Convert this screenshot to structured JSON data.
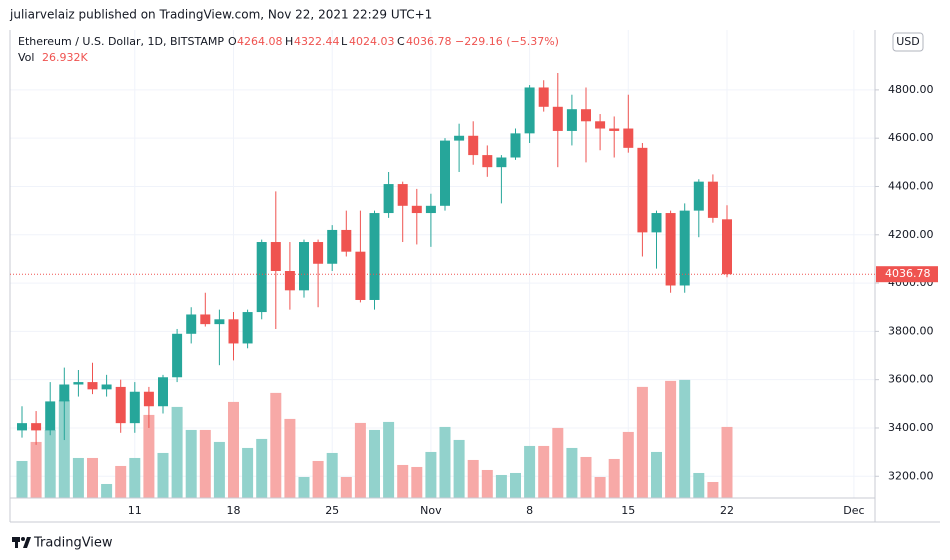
{
  "chart_data": {
    "type": "candlestick",
    "publisher_line": "juliarvelaiz published on TradingView.com, Nov 22, 2021 22:29 UTC+1",
    "title": "Ethereum / U.S. Dollar, 1D, BITSTAMP",
    "ohlc_labels": [
      "O",
      "H",
      "L",
      "C"
    ],
    "change": "−229.16 (−5.37%)",
    "currency": "USD",
    "footer": "TradingView",
    "up_color": "#26a69a",
    "down_color": "#ef5350",
    "volume_up_color": "#92d2cc",
    "volume_down_color": "#f7a9a7",
    "grid": true,
    "last_price_line": true,
    "categories": [
      null,
      null,
      null,
      null,
      null,
      null,
      null,
      null,
      "11",
      null,
      null,
      null,
      null,
      null,
      null,
      "18",
      null,
      null,
      null,
      null,
      null,
      null,
      "25",
      null,
      null,
      null,
      null,
      null,
      null,
      "Nov",
      null,
      null,
      null,
      null,
      null,
      null,
      "8",
      null,
      null,
      null,
      null,
      null,
      null,
      "15",
      null,
      null,
      null,
      null,
      null,
      null,
      "22",
      null,
      null,
      null,
      null,
      null,
      null,
      null,
      null,
      "Dec"
    ],
    "open": [
      3390,
      3420,
      3390,
      3510,
      3580,
      3590,
      3560,
      3570,
      3420,
      3550,
      3490,
      3610,
      3790,
      3870,
      3830,
      3850,
      3750,
      3880,
      4170,
      4050,
      3970,
      4170,
      4080,
      4220,
      4130,
      3930,
      4290,
      4410,
      4320,
      4290,
      4320,
      4590,
      4610,
      4530,
      4480,
      4520,
      4620,
      4810,
      4730,
      4630,
      4720,
      4670,
      4640,
      4640,
      4560,
      4210,
      4290,
      3990,
      4300,
      4420,
      4264.08,
      null,
      null,
      null,
      null,
      null,
      null,
      null,
      null,
      null
    ],
    "high": [
      3490,
      3470,
      3590,
      3650,
      3640,
      3670,
      3620,
      3600,
      3590,
      3570,
      3620,
      3810,
      3900,
      3960,
      3890,
      3880,
      3890,
      4180,
      4380,
      4170,
      4180,
      4180,
      4240,
      4300,
      4300,
      4300,
      4460,
      4420,
      4390,
      4370,
      4600,
      4660,
      4670,
      4570,
      4530,
      4640,
      4820,
      4840,
      4870,
      4780,
      4810,
      4700,
      4690,
      4780,
      4580,
      4300,
      4300,
      4330,
      4430,
      4450,
      4322.44,
      null,
      null,
      null,
      null,
      null,
      null,
      null,
      null,
      null
    ],
    "low": [
      3360,
      3330,
      3370,
      3350,
      3530,
      3540,
      3530,
      3380,
      3380,
      3400,
      3460,
      3590,
      3750,
      3820,
      3660,
      3680,
      3730,
      3850,
      3810,
      3890,
      3940,
      3900,
      4050,
      4110,
      3920,
      3890,
      4270,
      4170,
      4160,
      4150,
      4300,
      4460,
      4490,
      4440,
      4330,
      4510,
      4580,
      4710,
      4480,
      4570,
      4500,
      4550,
      4520,
      4540,
      4110,
      4060,
      3960,
      3960,
      4190,
      4250,
      4024.03,
      null,
      null,
      null,
      null,
      null,
      null,
      null,
      null,
      null
    ],
    "close": [
      3420,
      3390,
      3510,
      3580,
      3590,
      3560,
      3580,
      3420,
      3550,
      3490,
      3610,
      3790,
      3870,
      3830,
      3850,
      3750,
      3880,
      4170,
      4050,
      3970,
      4170,
      4080,
      4220,
      4130,
      3930,
      4290,
      4410,
      4320,
      4290,
      4320,
      4590,
      4610,
      4530,
      4480,
      4520,
      4620,
      4810,
      4730,
      4630,
      4720,
      4670,
      4640,
      4630,
      4560,
      4210,
      4290,
      3990,
      4300,
      4420,
      4270,
      4036.78,
      null,
      null,
      null,
      null,
      null,
      null,
      null,
      null,
      null
    ],
    "volume": {
      "name": "Vol",
      "value_label": "26.932K",
      "values": [
        14034,
        21241,
        25793,
        37171,
        15172,
        15172,
        5310,
        12138,
        15172,
        31482,
        17069,
        34516,
        25793,
        25793,
        21241,
        36413,
        18965,
        22379,
        39827,
        29965,
        7965,
        14034,
        17069,
        7965,
        28448,
        25793,
        28827,
        12517,
        11758,
        17448,
        26930,
        22000,
        14413,
        10620,
        8724,
        9482,
        19724,
        19724,
        26551,
        18965,
        15551,
        7965,
        14793,
        25034,
        42102,
        17448,
        44378,
        44757,
        9482,
        6069,
        26932,
        null,
        null,
        null,
        null,
        null,
        null,
        null,
        null,
        null
      ]
    },
    "volume_lim": [
      0,
      72000
    ],
    "ylim": [
      3110,
      5048
    ],
    "yticks": [
      {
        "value": 3200,
        "label": "3200.00"
      },
      {
        "value": 3400,
        "label": "3400.00"
      },
      {
        "value": 3600,
        "label": "3600.00"
      },
      {
        "value": 3800,
        "label": "3800.00"
      },
      {
        "value": 4000,
        "label": "4000.00"
      },
      {
        "value": 4200,
        "label": "4200.00"
      },
      {
        "value": 4400,
        "label": "4400.00"
      },
      {
        "value": 4600,
        "label": "4600.00"
      },
      {
        "value": 4800,
        "label": "4800.00"
      }
    ]
  }
}
